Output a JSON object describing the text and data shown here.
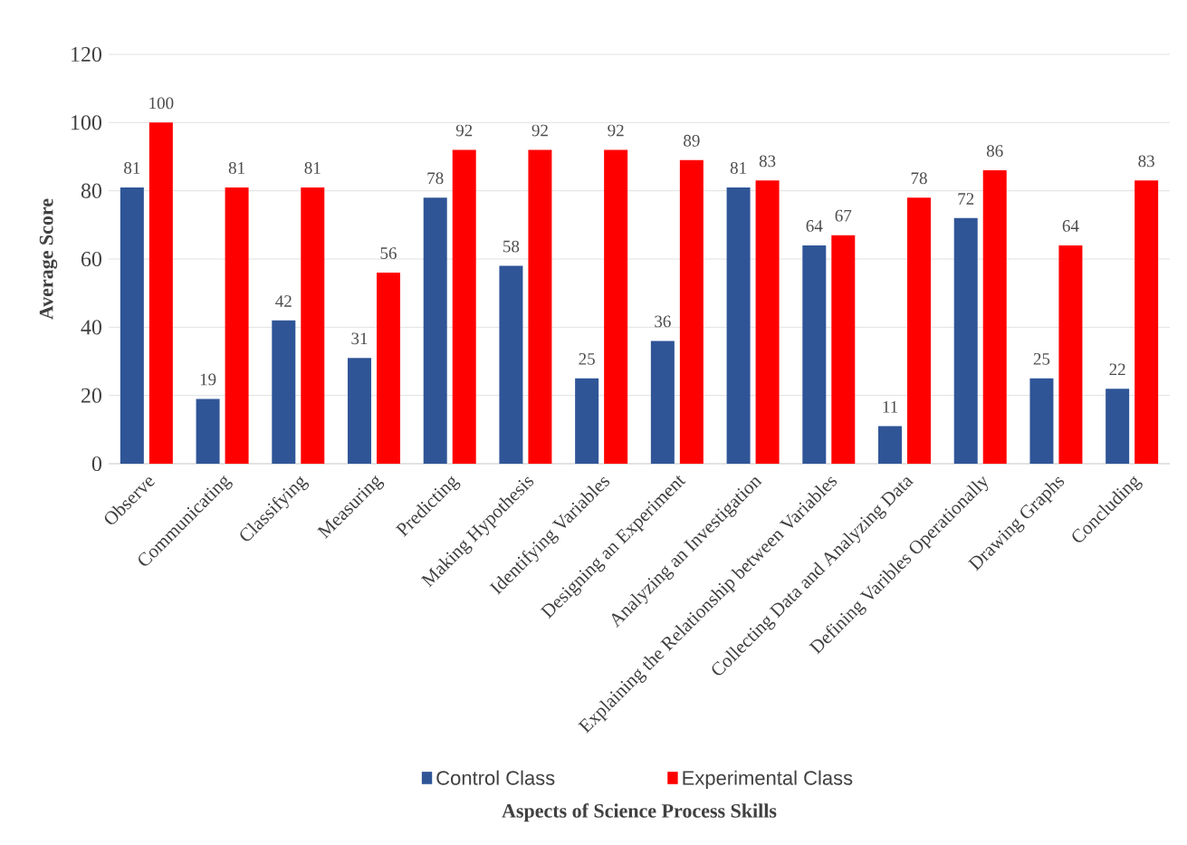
{
  "chart_data": {
    "type": "bar",
    "xlabel": "Aspects of Science Process Skills",
    "ylabel": "Average Score",
    "categories": [
      "Observe",
      "Communicating",
      "Classifying",
      "Measuring",
      "Predicting",
      "Making Hypothesis",
      "Identifying Variables",
      "Designing an Experiment",
      "Analyzing an Investigation",
      "Explaining the Relationship between Variables",
      "Collecting Data and Analyzing Data",
      "Defining Varibles Operationally",
      "Drawing Graphs",
      "Concluding"
    ],
    "series": [
      {
        "name": "Control Class",
        "color": "#2f5597",
        "values": [
          81,
          19,
          42,
          31,
          78,
          58,
          25,
          36,
          81,
          64,
          11,
          72,
          25,
          22
        ]
      },
      {
        "name": "Experimental Class",
        "color": "#ff0000",
        "values": [
          100,
          81,
          81,
          56,
          92,
          92,
          92,
          89,
          83,
          67,
          78,
          86,
          64,
          83
        ]
      }
    ],
    "ylim": [
      0,
      120
    ],
    "yticks": [
      0,
      20,
      40,
      60,
      80,
      100,
      120
    ],
    "grid": "y",
    "legend": "bottom",
    "data_labels": true
  }
}
